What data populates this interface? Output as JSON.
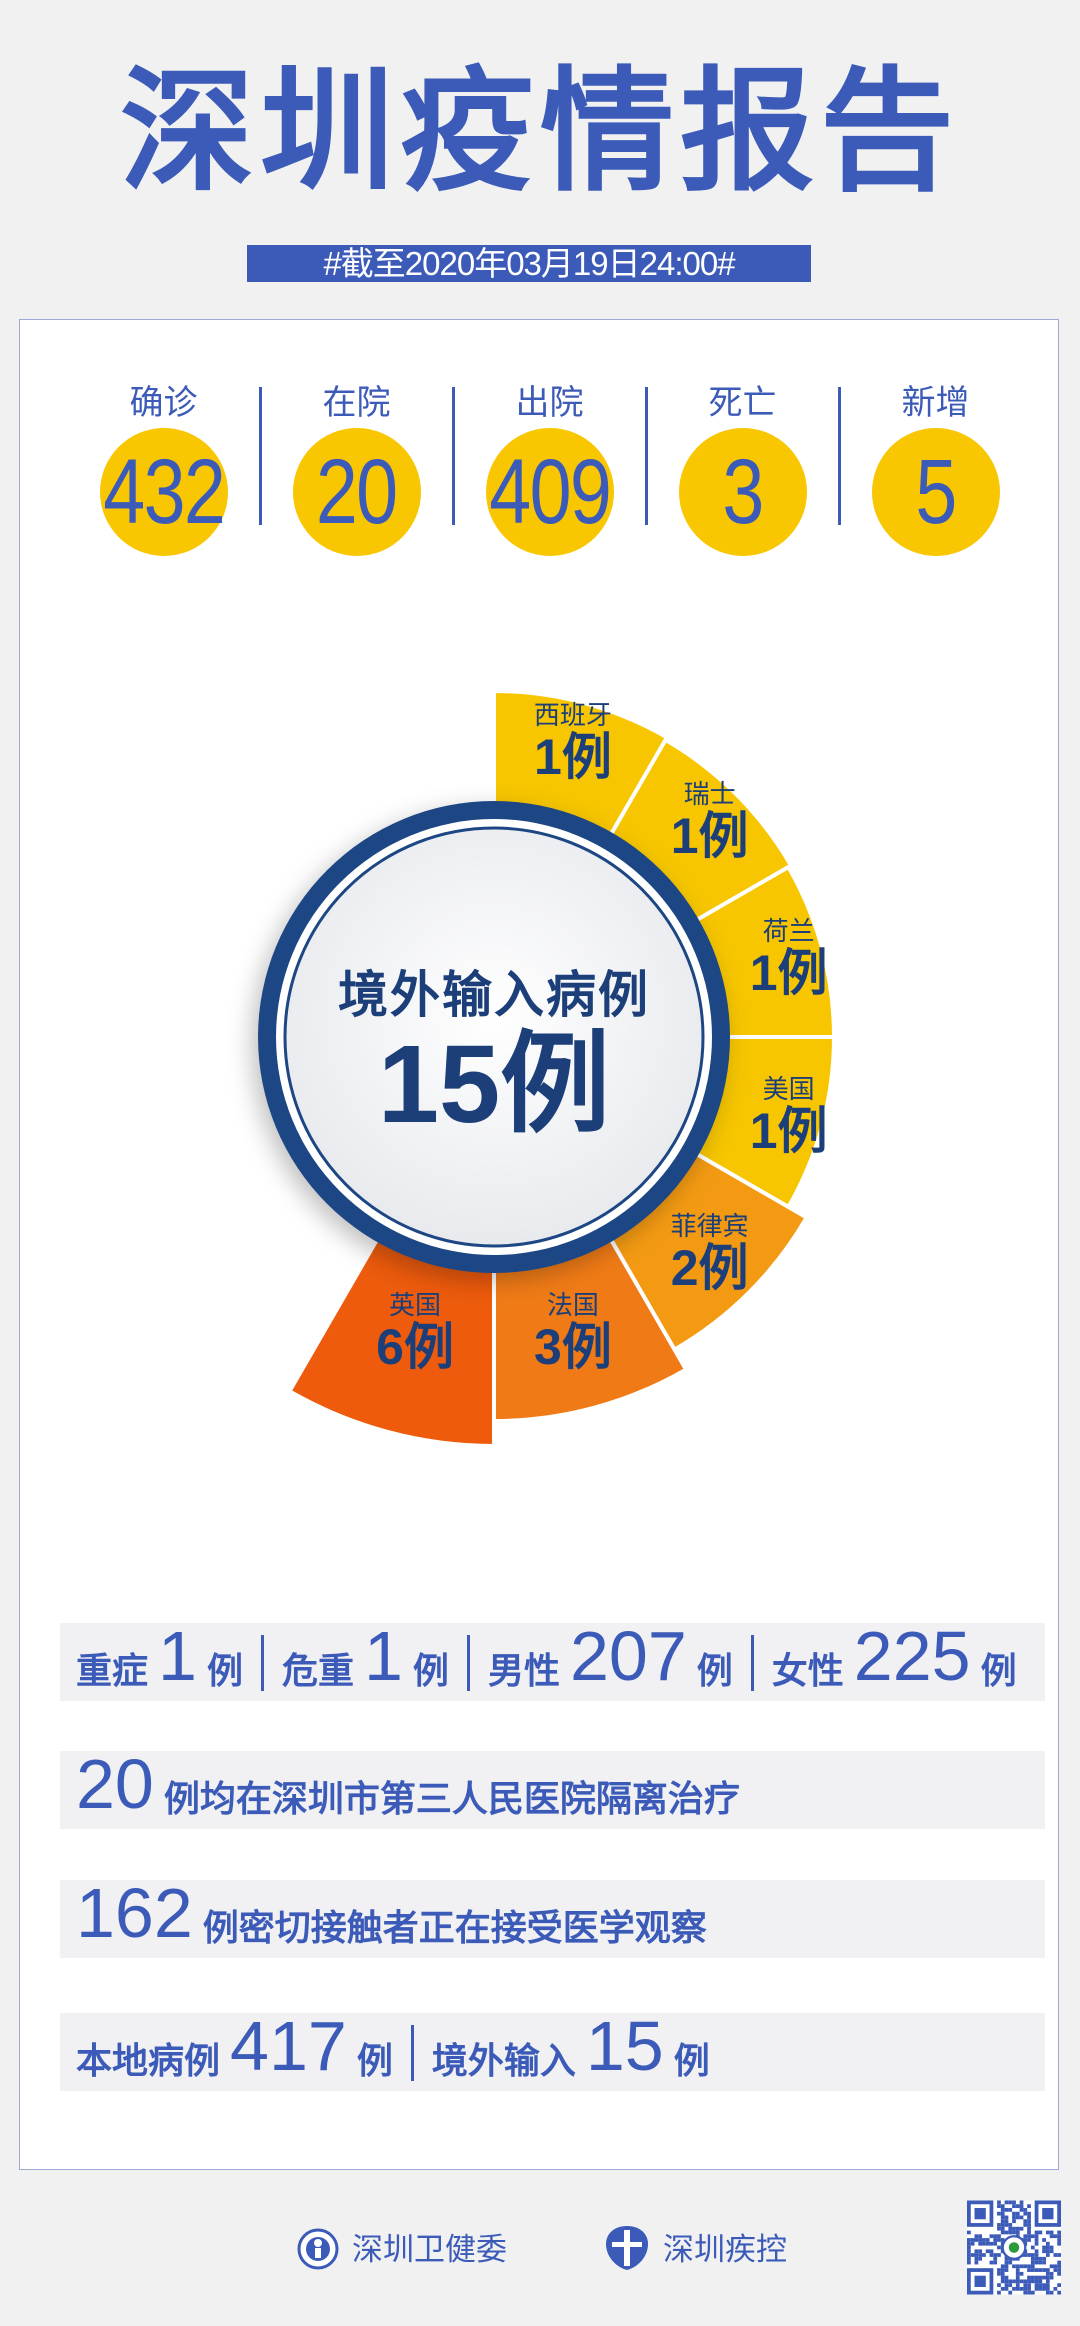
{
  "header": {
    "title": "深圳疫情报告",
    "date": "#截至2020年03月19日24:00#"
  },
  "summary": [
    {
      "label": "确诊",
      "value": "432"
    },
    {
      "label": "在院",
      "value": "20"
    },
    {
      "label": "出院",
      "value": "409"
    },
    {
      "label": "死亡",
      "value": "3"
    },
    {
      "label": "新增",
      "value": "5"
    }
  ],
  "imported": {
    "label": "境外输入病例",
    "total": "15例",
    "segments": [
      {
        "country": "西班牙",
        "cases": 1,
        "text": "1例",
        "color": "#f7c600"
      },
      {
        "country": "瑞士",
        "cases": 1,
        "text": "1例",
        "color": "#f7c600"
      },
      {
        "country": "荷兰",
        "cases": 1,
        "text": "1例",
        "color": "#f7c600"
      },
      {
        "country": "美国",
        "cases": 1,
        "text": "1例",
        "color": "#f7c600"
      },
      {
        "country": "菲律宾",
        "cases": 2,
        "text": "2例",
        "color": "#f39a12"
      },
      {
        "country": "法国",
        "cases": 3,
        "text": "3例",
        "color": "#f07b16"
      },
      {
        "country": "英国",
        "cases": 6,
        "text": "6例",
        "color": "#ee5b0c"
      }
    ]
  },
  "details": {
    "row1": [
      {
        "label": "重症",
        "value": "1",
        "unit": "例"
      },
      {
        "label": "危重",
        "value": "1",
        "unit": "例"
      },
      {
        "label": "男性",
        "value": "207",
        "unit": "例"
      },
      {
        "label": "女性",
        "value": "225",
        "unit": "例"
      }
    ],
    "row2": {
      "value": "20",
      "text": "例均在深圳市第三人民医院隔离治疗"
    },
    "row3": {
      "value": "162",
      "text": "例密切接触者正在接受医学观察"
    },
    "row4": [
      {
        "label": "本地病例",
        "value": "417",
        "unit": "例"
      },
      {
        "label": "境外输入",
        "value": "15",
        "unit": "例"
      }
    ]
  },
  "footer": {
    "org1": "深圳卫健委",
    "org2": "深圳疾控"
  },
  "colors": {
    "primary": "#3c5bb8",
    "navy": "#1c3f7a",
    "yellow": "#f9c702"
  }
}
